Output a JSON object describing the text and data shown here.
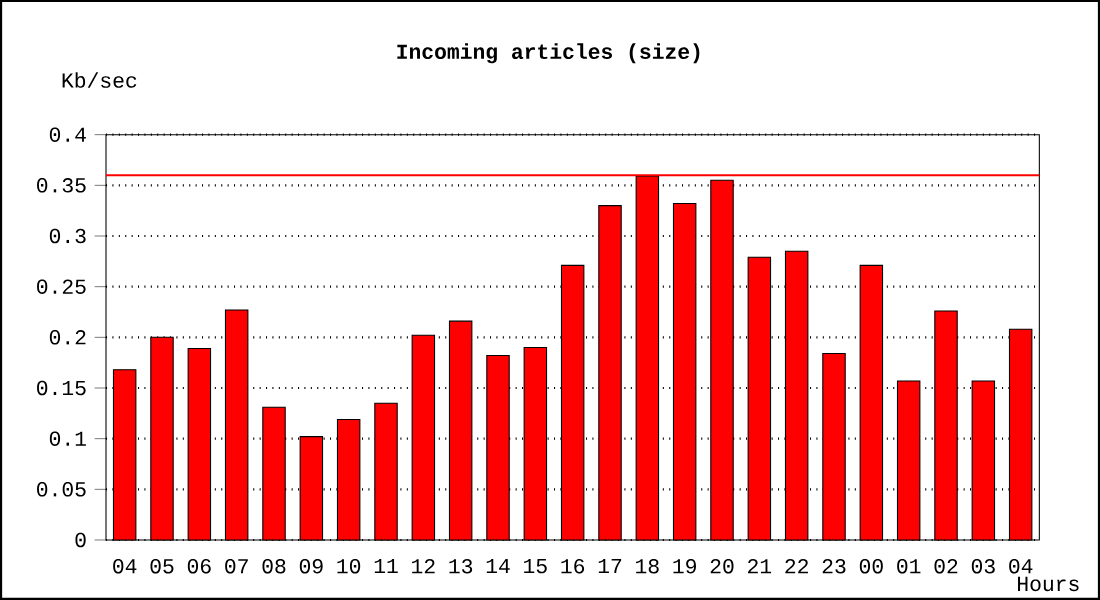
{
  "chart_data": {
    "type": "bar",
    "title": "Incoming articles (size)",
    "xlabel": "Hours",
    "ylabel": "Kb/sec",
    "categories": [
      "04",
      "05",
      "06",
      "07",
      "08",
      "09",
      "10",
      "11",
      "12",
      "13",
      "14",
      "15",
      "16",
      "17",
      "18",
      "19",
      "20",
      "21",
      "22",
      "23",
      "00",
      "01",
      "02",
      "03",
      "04"
    ],
    "values": [
      0.168,
      0.2,
      0.189,
      0.227,
      0.131,
      0.102,
      0.119,
      0.135,
      0.202,
      0.216,
      0.182,
      0.19,
      0.271,
      0.33,
      0.359,
      0.332,
      0.355,
      0.279,
      0.285,
      0.184,
      0.271,
      0.157,
      0.226,
      0.157,
      0.208
    ],
    "color": "#ff0000",
    "ylim": [
      0,
      0.4
    ],
    "yticks": [
      0,
      0.05,
      0.1,
      0.15,
      0.2,
      0.25,
      0.3,
      0.35,
      0.4
    ],
    "grid": "y",
    "ref_lines": [
      {
        "axis": "y",
        "value": 0.36,
        "color": "#ff0000"
      }
    ]
  }
}
